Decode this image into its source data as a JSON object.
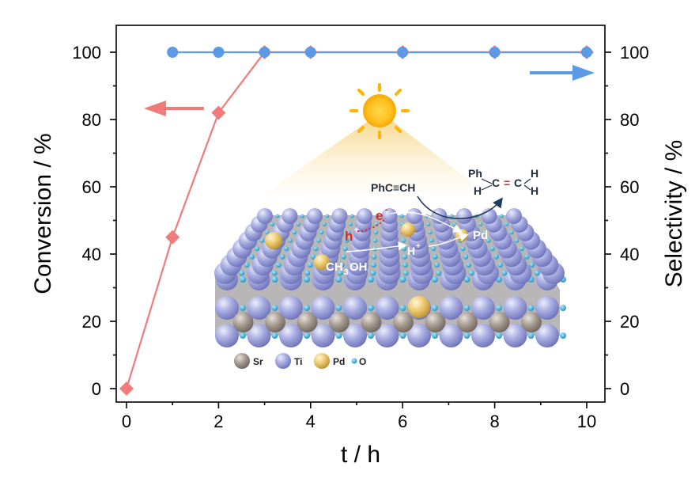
{
  "chart_data": {
    "type": "line",
    "xlabel": "t / h",
    "ylabel_left": "Conversion / %",
    "ylabel_right": "Selectivity / %",
    "xlim": [
      0,
      10
    ],
    "ylim_left": [
      0,
      100
    ],
    "ylim_right": [
      0,
      100
    ],
    "x_ticks": [
      "0",
      "2",
      "4",
      "6",
      "8",
      "10"
    ],
    "y_ticks_left": [
      "0",
      "20",
      "40",
      "60",
      "80",
      "100"
    ],
    "y_ticks_right": [
      "0",
      "20",
      "40",
      "60",
      "80",
      "100"
    ],
    "series": [
      {
        "axis": "left",
        "marker": "diamond",
        "color": "#f07b7b",
        "x": [
          0,
          1,
          2,
          3,
          4,
          6,
          8,
          10
        ],
        "y": [
          0,
          45,
          82,
          100,
          100,
          100,
          100,
          100
        ]
      },
      {
        "axis": "right",
        "marker": "circle",
        "color": "#5b9ae6",
        "x": [
          1,
          2,
          3,
          4,
          6,
          8,
          10
        ],
        "y": [
          100,
          100,
          100,
          100,
          100,
          100,
          100
        ]
      }
    ],
    "grid": false
  },
  "inset": {
    "reactant": "PhC≡CH",
    "product_ph": "Ph",
    "product_h": "H",
    "product_c1": "C",
    "product_eq": "=",
    "product_c2": "C",
    "electron": "e",
    "hole": "h",
    "methanol_main": "CH",
    "methanol_sub": "3",
    "methanol_tail": "OH",
    "proton": "H",
    "charge_minus": "-",
    "charge_plus": "+",
    "pd_label": "Pd",
    "legend": [
      {
        "label": "Sr",
        "color": "#9a8f86"
      },
      {
        "label": "Ti",
        "color": "#9da3dd"
      },
      {
        "label": "Pd",
        "color": "#e8c46a"
      },
      {
        "label": "O",
        "color": "#27a9d6"
      }
    ]
  }
}
